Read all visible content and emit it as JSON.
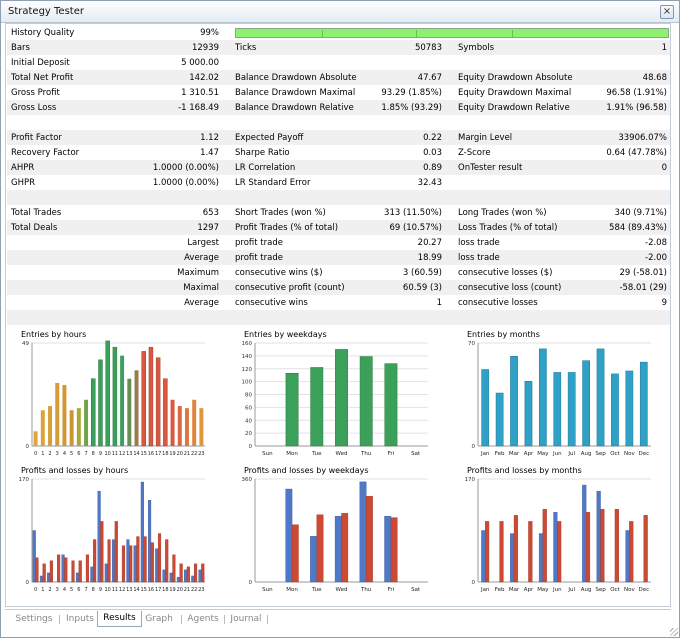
{
  "window": {
    "title": "Strategy Tester",
    "close_glyph": "×"
  },
  "history_quality": {
    "label": "History Quality",
    "value": "99%",
    "fill": 0.99
  },
  "rows": [
    {
      "alt": true,
      "cols": [
        {
          "label": "Bars",
          "value": "12939"
        },
        {
          "label": "Ticks",
          "value": "50783"
        },
        {
          "label": "Symbols",
          "value": "1"
        }
      ]
    },
    {
      "alt": false,
      "cols": [
        {
          "label": "Initial Deposit",
          "value": "5 000.00"
        },
        {
          "label": "",
          "value": ""
        },
        {
          "label": "",
          "value": ""
        }
      ]
    },
    {
      "alt": true,
      "cols": [
        {
          "label": "Total Net Profit",
          "value": "142.02"
        },
        {
          "label": "Balance Drawdown Absolute",
          "value": "47.67"
        },
        {
          "label": "Equity Drawdown Absolute",
          "value": "48.68"
        }
      ]
    },
    {
      "alt": false,
      "cols": [
        {
          "label": "Gross Profit",
          "value": "1 310.51"
        },
        {
          "label": "Balance Drawdown Maximal",
          "value": "93.29 (1.85%)"
        },
        {
          "label": "Equity Drawdown Maximal",
          "value": "96.58 (1.91%)"
        }
      ]
    },
    {
      "alt": true,
      "cols": [
        {
          "label": "Gross Loss",
          "value": "-1 168.49"
        },
        {
          "label": "Balance Drawdown Relative",
          "value": "1.85% (93.29)"
        },
        {
          "label": "Equity Drawdown Relative",
          "value": "1.91% (96.58)"
        }
      ]
    },
    {
      "alt": false,
      "cols": [
        {
          "label": "",
          "value": ""
        },
        {
          "label": "",
          "value": ""
        },
        {
          "label": "",
          "value": ""
        }
      ]
    },
    {
      "alt": true,
      "cols": [
        {
          "label": "Profit Factor",
          "value": "1.12"
        },
        {
          "label": "Expected Payoff",
          "value": "0.22"
        },
        {
          "label": "Margin Level",
          "value": "33906.07%"
        }
      ]
    },
    {
      "alt": false,
      "cols": [
        {
          "label": "Recovery Factor",
          "value": "1.47"
        },
        {
          "label": "Sharpe Ratio",
          "value": "0.03"
        },
        {
          "label": "Z-Score",
          "value": "0.64 (47.78%)"
        }
      ]
    },
    {
      "alt": true,
      "cols": [
        {
          "label": "AHPR",
          "value": "1.0000 (0.00%)"
        },
        {
          "label": "LR Correlation",
          "value": "0.89"
        },
        {
          "label": "OnTester result",
          "value": "0"
        }
      ]
    },
    {
      "alt": false,
      "cols": [
        {
          "label": "GHPR",
          "value": "1.0000 (0.00%)"
        },
        {
          "label": "LR Standard Error",
          "value": "32.43"
        },
        {
          "label": "",
          "value": ""
        }
      ]
    },
    {
      "alt": true,
      "cols": [
        {
          "label": "",
          "value": ""
        },
        {
          "label": "",
          "value": ""
        },
        {
          "label": "",
          "value": ""
        }
      ]
    },
    {
      "alt": false,
      "cols": [
        {
          "label": "Total Trades",
          "value": "653"
        },
        {
          "label": "Short Trades (won %)",
          "value": "313 (11.50%)"
        },
        {
          "label": "Long Trades (won %)",
          "value": "340 (9.71%)"
        }
      ]
    },
    {
      "alt": true,
      "cols": [
        {
          "label": "Total Deals",
          "value": "1297"
        },
        {
          "label": "Profit Trades (% of total)",
          "value": "69 (10.57%)"
        },
        {
          "label": "Loss Trades (% of total)",
          "value": "584 (89.43%)"
        }
      ]
    },
    {
      "alt": false,
      "cols": [
        {
          "label": "",
          "value": "Largest"
        },
        {
          "label": "profit trade",
          "value": "20.27"
        },
        {
          "label": "loss trade",
          "value": "-2.08"
        }
      ]
    },
    {
      "alt": true,
      "cols": [
        {
          "label": "",
          "value": "Average"
        },
        {
          "label": "profit trade",
          "value": "18.99"
        },
        {
          "label": "loss trade",
          "value": "-2.00"
        }
      ]
    },
    {
      "alt": false,
      "cols": [
        {
          "label": "",
          "value": "Maximum"
        },
        {
          "label": "consecutive wins ($)",
          "value": "3 (60.59)"
        },
        {
          "label": "consecutive losses ($)",
          "value": "29 (-58.01)"
        }
      ]
    },
    {
      "alt": true,
      "cols": [
        {
          "label": "",
          "value": "Maximal"
        },
        {
          "label": "consecutive profit (count)",
          "value": "60.59 (3)"
        },
        {
          "label": "consecutive loss (count)",
          "value": "-58.01 (29)"
        }
      ]
    },
    {
      "alt": false,
      "cols": [
        {
          "label": "",
          "value": "Average"
        },
        {
          "label": "consecutive wins",
          "value": "1"
        },
        {
          "label": "consecutive losses",
          "value": "9"
        }
      ]
    },
    {
      "alt": true,
      "cols": [
        {
          "label": "",
          "value": ""
        },
        {
          "label": "",
          "value": ""
        },
        {
          "label": "",
          "value": ""
        }
      ]
    }
  ],
  "colors": {
    "green": "#3aa05a",
    "blue": "#2fa0c6",
    "orange": "#e3a53a",
    "red": "#d9583f",
    "profit": "#4f78c6",
    "loss": "#cc4a33"
  },
  "chart_data": [
    {
      "type": "bar",
      "title": "Entries by hours",
      "categories": [
        "0",
        "1",
        "2",
        "3",
        "4",
        "5",
        "6",
        "7",
        "8",
        "9",
        "10",
        "11",
        "12",
        "13",
        "14",
        "15",
        "16",
        "17",
        "18",
        "19",
        "20",
        "21",
        "22",
        "23"
      ],
      "values": [
        7,
        17,
        19,
        30,
        29,
        17,
        18,
        22,
        32,
        41,
        50,
        47,
        43,
        32,
        36,
        45,
        47,
        42,
        32,
        22,
        19,
        18,
        22,
        18
      ],
      "ylim": [
        0,
        49
      ],
      "yticks": [
        "49",
        "0"
      ]
    },
    {
      "type": "bar",
      "title": "Entries by weekdays",
      "categories": [
        "Sun",
        "Mon",
        "Tue",
        "Wed",
        "Thu",
        "Fri",
        "Sat"
      ],
      "values": [
        0,
        113,
        122,
        150,
        139,
        128,
        0
      ],
      "ylim": [
        0,
        160
      ],
      "yticks": [
        "160",
        "140",
        "120",
        "100",
        "80",
        "60",
        "40",
        "20",
        "0"
      ]
    },
    {
      "type": "bar",
      "title": "Entries by months",
      "categories": [
        "Jan",
        "Feb",
        "Mar",
        "Apr",
        "May",
        "Jun",
        "Jul",
        "Aug",
        "Sep",
        "Oct",
        "Nov",
        "Dec"
      ],
      "values": [
        52,
        36,
        61,
        44,
        66,
        50,
        50,
        58,
        66,
        49,
        51,
        57
      ],
      "ylim": [
        0,
        70
      ],
      "yticks": [
        "70",
        "0"
      ]
    },
    {
      "type": "bar",
      "title": "Profits and losses by hours",
      "categories": [
        "0",
        "1",
        "2",
        "3",
        "4",
        "5",
        "6",
        "7",
        "8",
        "9",
        "10",
        "11",
        "12",
        "13",
        "14",
        "15",
        "16",
        "17",
        "18",
        "19",
        "20",
        "21",
        "22",
        "23"
      ],
      "series": [
        {
          "name": "profit",
          "values": [
            85,
            10,
            15,
            0,
            45,
            0,
            15,
            0,
            25,
            150,
            30,
            70,
            0,
            70,
            60,
            165,
            135,
            55,
            20,
            15,
            8,
            20,
            10,
            20
          ]
        },
        {
          "name": "loss",
          "values": [
            40,
            30,
            35,
            45,
            40,
            35,
            35,
            45,
            70,
            100,
            70,
            100,
            60,
            60,
            75,
            75,
            65,
            80,
            70,
            45,
            30,
            25,
            30,
            30
          ]
        }
      ],
      "ylim": [
        0,
        170
      ],
      "yticks": [
        "170",
        "0"
      ]
    },
    {
      "type": "bar",
      "title": "Profits and losses by weekdays",
      "categories": [
        "Sun",
        "Mon",
        "Tue",
        "Wed",
        "Thu",
        "Fri",
        "Sat"
      ],
      "series": [
        {
          "name": "profit",
          "values": [
            0,
            325,
            160,
            230,
            350,
            230,
            0
          ]
        },
        {
          "name": "loss",
          "values": [
            0,
            200,
            235,
            240,
            300,
            225,
            0
          ]
        }
      ],
      "ylim": [
        0,
        360
      ],
      "yticks": [
        "360",
        "0"
      ]
    },
    {
      "type": "bar",
      "title": "Profits and losses by months",
      "categories": [
        "Jan",
        "Feb",
        "Mar",
        "Apr",
        "May",
        "Jun",
        "Jul",
        "Aug",
        "Sep",
        "Oct",
        "Nov",
        "Dec"
      ],
      "series": [
        {
          "name": "profit",
          "values": [
            85,
            0,
            80,
            0,
            80,
            115,
            0,
            160,
            150,
            0,
            85,
            0
          ]
        },
        {
          "name": "loss",
          "values": [
            100,
            100,
            110,
            100,
            120,
            100,
            0,
            115,
            120,
            120,
            100,
            110
          ]
        }
      ],
      "ylim": [
        0,
        170
      ],
      "yticks": [
        "170",
        "0"
      ]
    }
  ],
  "tabs": [
    "Settings",
    "Inputs",
    "Results",
    "Graph",
    "Agents",
    "Journal"
  ],
  "active_tab": "Results"
}
